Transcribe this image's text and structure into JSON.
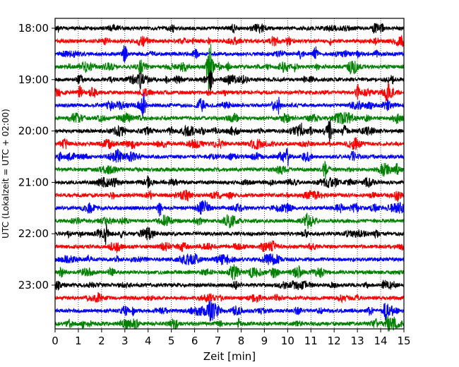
{
  "chart_data": {
    "type": "line",
    "title": "",
    "xlabel": "Zeit  [min]",
    "ylabel": "UTC (Lokalzeit = UTC + 02:00)",
    "xlim": [
      0,
      15
    ],
    "x_ticks": [
      "0",
      "1",
      "2",
      "3",
      "4",
      "5",
      "6",
      "7",
      "8",
      "9",
      "10",
      "11",
      "12",
      "13",
      "14",
      "15"
    ],
    "y_ticks": [
      "18:00",
      "19:00",
      "20:00",
      "21:00",
      "22:00",
      "23:00"
    ],
    "trace_start_times": [
      "18:00",
      "18:15",
      "18:30",
      "18:45",
      "19:00",
      "19:15",
      "19:30",
      "19:45",
      "20:00",
      "20:15",
      "20:30",
      "20:45",
      "21:00",
      "21:15",
      "21:30",
      "21:45",
      "22:00",
      "22:15",
      "22:30",
      "22:45",
      "23:00",
      "23:15",
      "23:30",
      "23:45"
    ],
    "trace_minutes": 15,
    "grid_x": "dotted vertical lines at each minute",
    "trace_colors": [
      "#000000",
      "#ff0000",
      "#0000ff",
      "#008000"
    ],
    "events": [
      {
        "trace": "18:45",
        "minute": 6.6,
        "strength": 4.5
      },
      {
        "trace": "18:45",
        "minute": 6.7,
        "strength": 2.5
      },
      {
        "trace": "19:00",
        "minute": 6.7,
        "strength": 2.0
      },
      {
        "trace": "18:30",
        "minute": 3.0,
        "strength": 1.6
      },
      {
        "trace": "18:30",
        "minute": 11.2,
        "strength": 1.3
      },
      {
        "trace": "19:30",
        "minute": 3.8,
        "strength": 1.6
      },
      {
        "trace": "19:30",
        "minute": 9.6,
        "strength": 1.2
      },
      {
        "trace": "20:00",
        "minute": 11.8,
        "strength": 1.6
      },
      {
        "trace": "20:30",
        "minute": 10.0,
        "strength": 1.4
      },
      {
        "trace": "20:45",
        "minute": 11.6,
        "strength": 1.5
      },
      {
        "trace": "22:00",
        "minute": 2.2,
        "strength": 1.5
      },
      {
        "trace": "23:30",
        "minute": 14.2,
        "strength": 1.7
      },
      {
        "trace": "19:15",
        "minute": 13.0,
        "strength": 1.2
      },
      {
        "trace": "19:15",
        "minute": 14.3,
        "strength": 1.2
      },
      {
        "trace": "21:30",
        "minute": 4.5,
        "strength": 1.2
      }
    ]
  }
}
